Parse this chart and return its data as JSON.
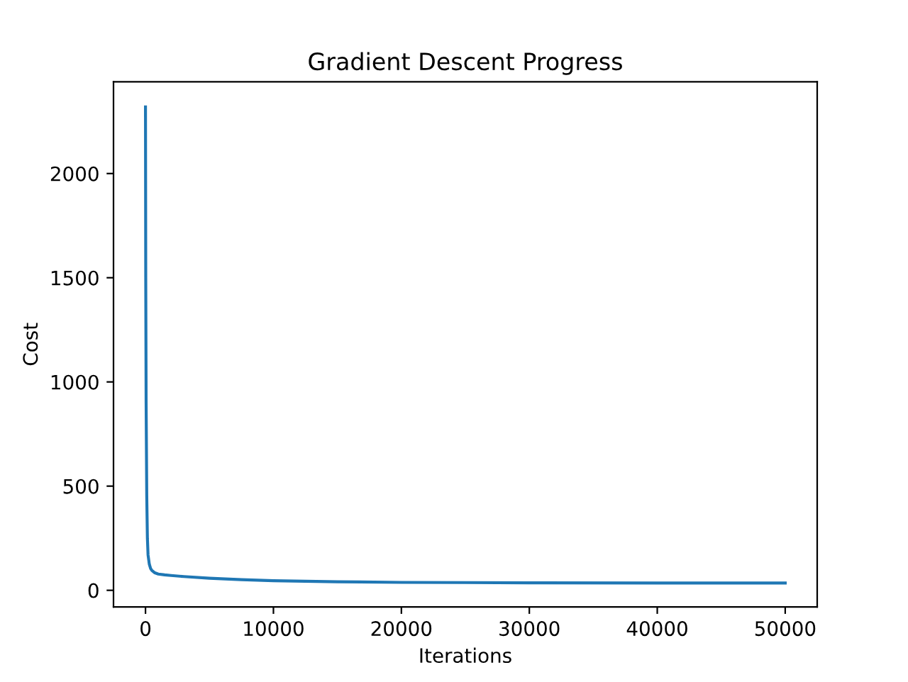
{
  "chart_data": {
    "type": "line",
    "title": "Gradient Descent Progress",
    "xlabel": "Iterations",
    "ylabel": "Cost",
    "series": [
      {
        "color": "#1f77b4",
        "x": [
          0,
          20,
          50,
          100,
          150,
          200,
          300,
          400,
          500,
          700,
          1000,
          1500,
          2000,
          3000,
          5000,
          7500,
          10000,
          15000,
          20000,
          25000,
          30000,
          40000,
          50000
        ],
        "values": [
          2320,
          1500,
          900,
          450,
          250,
          170,
          125,
          105,
          95,
          85,
          78,
          74,
          71,
          66,
          58,
          51,
          46,
          41,
          38,
          37,
          36,
          35,
          35
        ]
      }
    ],
    "xlim": [
      -2500,
      52500
    ],
    "ylim": [
      -80,
      2440
    ],
    "xticks": [
      0,
      10000,
      20000,
      30000,
      40000,
      50000
    ],
    "yticks": [
      0,
      500,
      1000,
      1500,
      2000
    ],
    "grid": false,
    "legend": false
  }
}
